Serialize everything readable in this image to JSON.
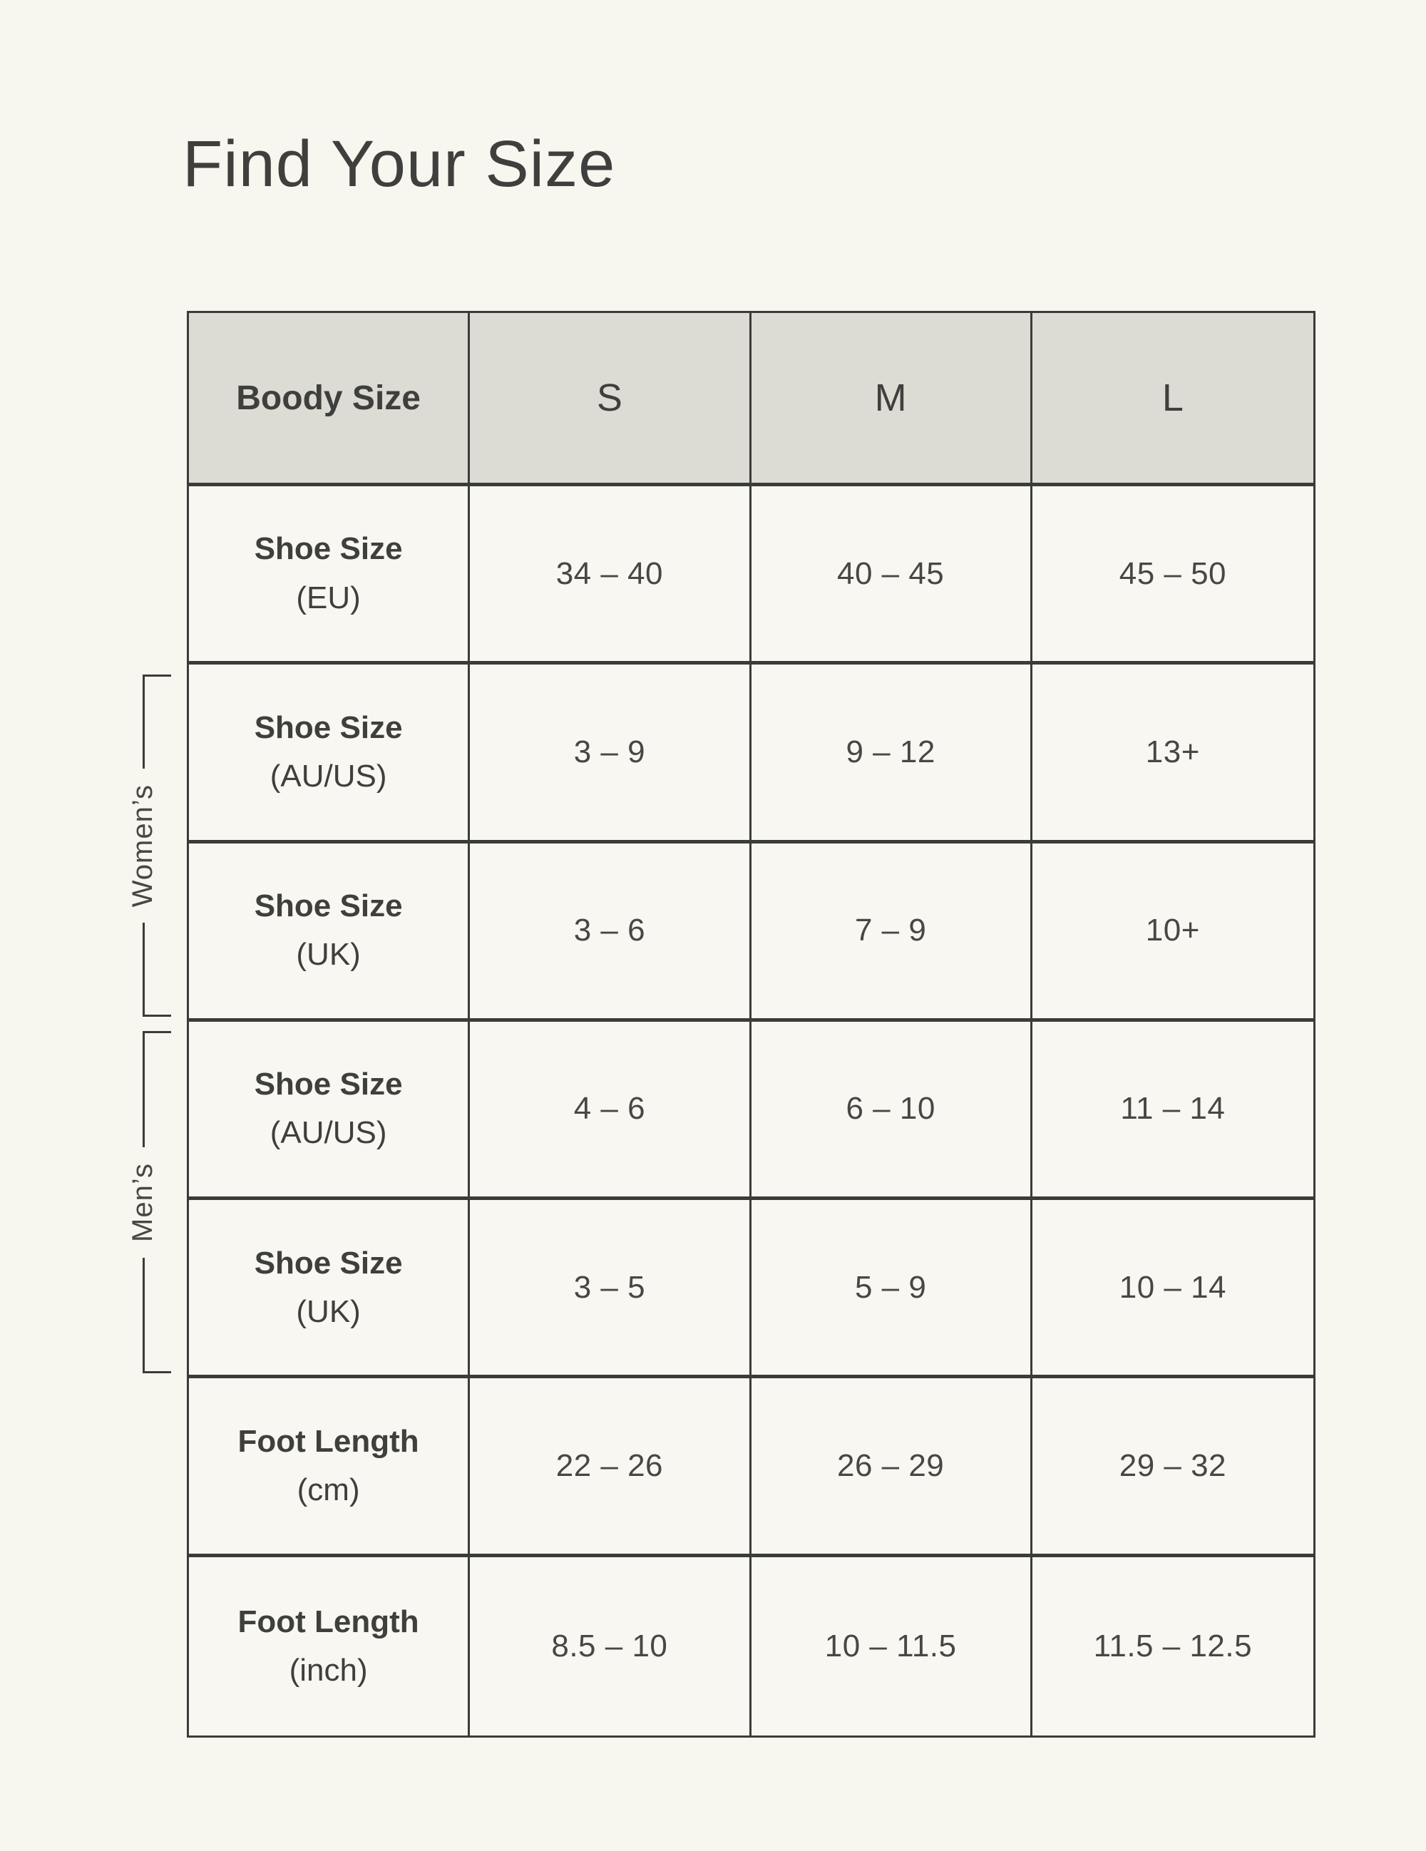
{
  "page": {
    "title": "Find Your Size"
  },
  "colors": {
    "page_background": "#f7f6ef",
    "header_background": "#dcdcd4",
    "cell_background": "#f8f7f1",
    "border": "#3b3b39",
    "heading_text": "#3f3f3d",
    "value_text": "#474745"
  },
  "table": {
    "header": {
      "label": "Boody Size",
      "sizes": [
        "S",
        "M",
        "L"
      ]
    },
    "group_labels": {
      "womens": "Women’s",
      "mens": "Men’s"
    },
    "rows": [
      {
        "label1": "Shoe Size",
        "label2": "(EU)",
        "group": "",
        "values": [
          "34 – 40",
          "40 – 45",
          "45 – 50"
        ]
      },
      {
        "label1": "Shoe Size",
        "label2": "(AU/US)",
        "group": "womens",
        "values": [
          "3 – 9",
          "9 – 12",
          "13+"
        ]
      },
      {
        "label1": "Shoe Size",
        "label2": "(UK)",
        "group": "womens",
        "values": [
          "3 – 6",
          "7 – 9",
          "10+"
        ]
      },
      {
        "label1": "Shoe Size",
        "label2": "(AU/US)",
        "group": "mens",
        "values": [
          "4 – 6",
          "6 – 10",
          "11 – 14"
        ]
      },
      {
        "label1": "Shoe Size",
        "label2": "(UK)",
        "group": "mens",
        "values": [
          "3 – 5",
          "5 – 9",
          "10 – 14"
        ]
      },
      {
        "label1": "Foot Length",
        "label2": "(cm)",
        "group": "",
        "values": [
          "22 – 26",
          "26 – 29",
          "29 – 32"
        ]
      },
      {
        "label1": "Foot Length",
        "label2": "(inch)",
        "group": "",
        "values": [
          "8.5 – 10",
          "10 – 11.5",
          "11.5 – 12.5"
        ]
      }
    ]
  }
}
